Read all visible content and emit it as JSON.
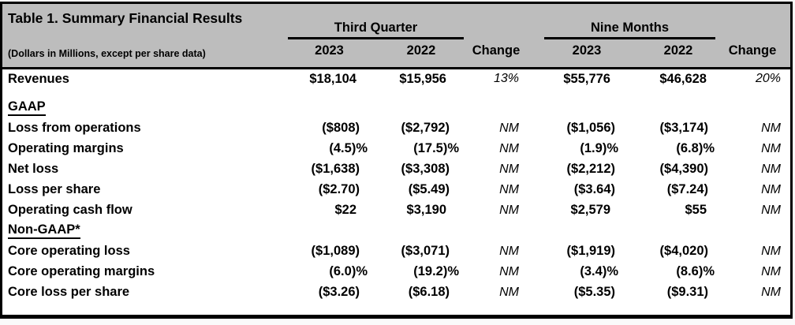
{
  "colors": {
    "header-bg": "#bdbdbd",
    "border": "#000000",
    "text": "#000000",
    "body-bg": "#ffffff"
  },
  "header": {
    "title": "Table 1. Summary Financial Results",
    "subtitle": "(Dollars in Millions, except per share data)",
    "groups": [
      "Third Quarter",
      "Nine Months"
    ],
    "columns": [
      "2023",
      "2022",
      "Change",
      "2023",
      "2022",
      "Change"
    ]
  },
  "rows": [
    {
      "label": "Revenues",
      "values": [
        "$18,104",
        "$15,956",
        "13%",
        "$55,776",
        "$46,628",
        "20%"
      ],
      "gap_after": true
    },
    {
      "label": "GAAP",
      "section": true
    },
    {
      "label": "Loss from operations",
      "values": [
        "($808)",
        "($2,792)",
        "NM",
        "($1,056)",
        "($3,174)",
        "NM"
      ]
    },
    {
      "label": "Operating margins",
      "values": [
        "(4.5)%",
        "(17.5)%",
        "NM",
        "(1.9)%",
        "(6.8)%",
        "NM"
      ]
    },
    {
      "label": "Net loss",
      "values": [
        "($1,638)",
        "($3,308)",
        "NM",
        "($2,212)",
        "($4,390)",
        "NM"
      ]
    },
    {
      "label": "Loss per share",
      "values": [
        "($2.70)",
        "($5.49)",
        "NM",
        "($3.64)",
        "($7.24)",
        "NM"
      ]
    },
    {
      "label": "Operating cash flow",
      "values": [
        "$22",
        "$3,190",
        "NM",
        "$2,579",
        "$55",
        "NM"
      ]
    },
    {
      "label": "Non-GAAP*",
      "section": true
    },
    {
      "label": "Core operating loss",
      "values": [
        "($1,089)",
        "($3,071)",
        "NM",
        "($1,919)",
        "($4,020)",
        "NM"
      ]
    },
    {
      "label": "Core operating margins",
      "values": [
        "(6.0)%",
        "(19.2)%",
        "NM",
        "(3.4)%",
        "(8.6)%",
        "NM"
      ]
    },
    {
      "label": "Core loss per share",
      "values": [
        "($3.26)",
        "($6.18)",
        "NM",
        "($5.35)",
        "($9.31)",
        "NM"
      ]
    }
  ]
}
